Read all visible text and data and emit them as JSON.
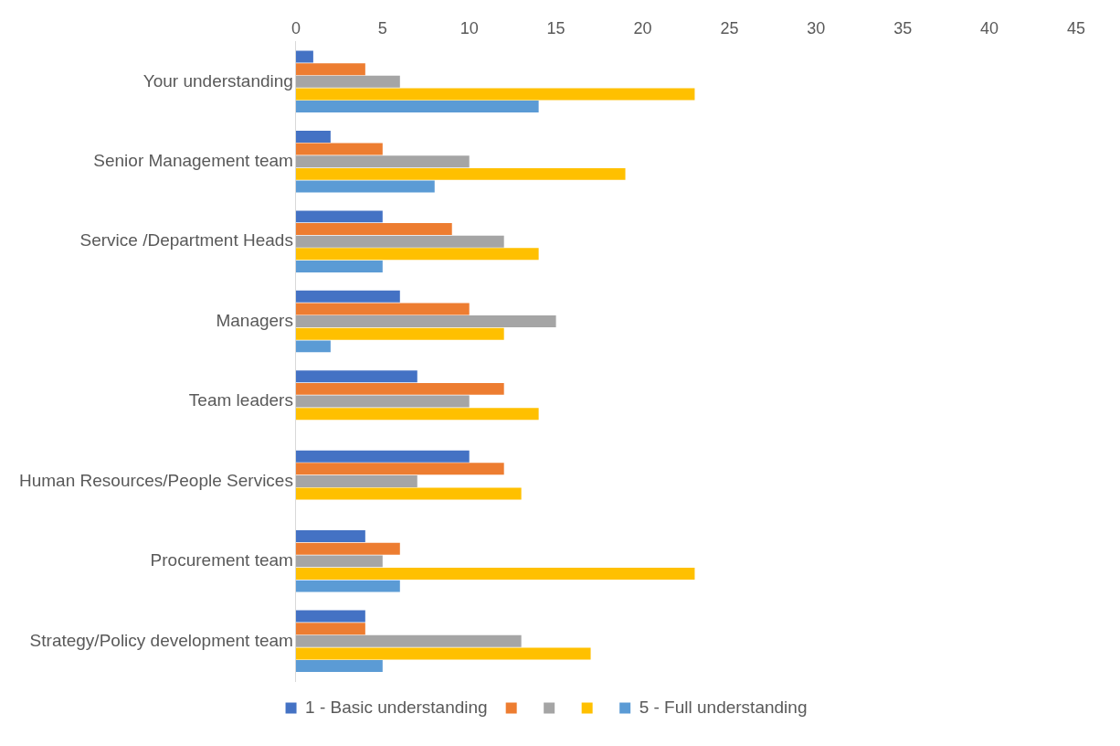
{
  "chart_data": {
    "type": "bar",
    "orientation": "horizontal",
    "categories": [
      "Your understanding",
      "Senior Management team",
      "Service /Department Heads",
      "Managers",
      "Team leaders",
      "Human Resources/People Services",
      "Procurement team",
      "Strategy/Policy development team"
    ],
    "series": [
      {
        "name": "1 - Basic understanding",
        "color": "#4472c4",
        "values": [
          1,
          2,
          5,
          6,
          7,
          10,
          4,
          4
        ]
      },
      {
        "color": "#ed7d31",
        "values": [
          4,
          5,
          9,
          10,
          12,
          12,
          6,
          4
        ]
      },
      {
        "color": "#a5a5a5",
        "values": [
          6,
          10,
          12,
          15,
          10,
          7,
          5,
          13
        ]
      },
      {
        "color": "#ffc000",
        "values": [
          23,
          19,
          14,
          12,
          14,
          13,
          23,
          17
        ]
      },
      {
        "name": "5 - Full understanding",
        "color": "#5b9bd5",
        "values": [
          14,
          8,
          5,
          2,
          0,
          0,
          6,
          5
        ]
      }
    ],
    "xlim": [
      0,
      45
    ],
    "xticks": [
      0,
      5,
      10,
      15,
      20,
      25,
      30,
      35,
      40,
      45
    ],
    "grid": false,
    "legend": "bottom"
  }
}
